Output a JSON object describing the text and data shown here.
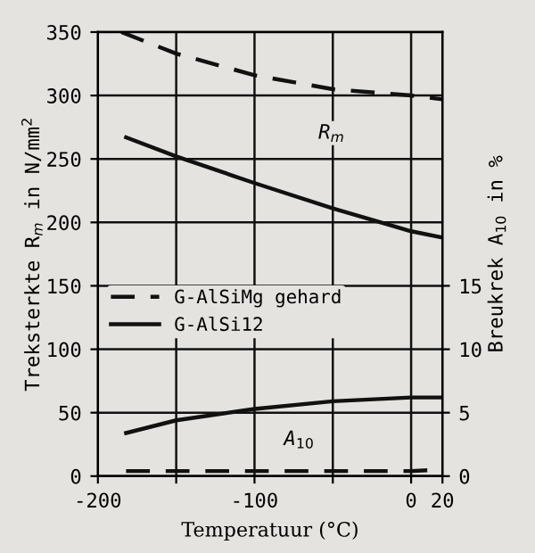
{
  "chart_data": {
    "type": "line",
    "xlabel": "Temperatuur (°C)",
    "ylabel": "Treksterkte R$_{m}$ in N/mm$^{2}$",
    "y2label": "Breukrek A$_{10}$ in %",
    "series": [
      {
        "name": "G-AlSiMg gehard",
        "color": "#111111",
        "line_style": "dashed",
        "x": [
          -185,
          -150,
          -100,
          -50,
          0,
          20
        ],
        "values": [
          350,
          333,
          316,
          305,
          300,
          297
        ]
      },
      {
        "name": "G-AlSi12",
        "color": "#111111",
        "line_style": "solid",
        "x": [
          -182,
          -150,
          -100,
          -50,
          0,
          20
        ],
        "values": [
          267,
          252,
          231,
          211,
          193,
          188
        ]
      },
      {
        "color": "#111111",
        "line_style": "dashed",
        "axis": "y2",
        "x": [
          -182,
          -150,
          -100,
          -50,
          0,
          18
        ],
        "values": [
          0.4,
          0.4,
          0.4,
          0.4,
          0.4,
          0.5
        ]
      },
      {
        "color": "#111111",
        "line_style": "solid",
        "axis": "y2",
        "x": [
          -182,
          -150,
          -100,
          -50,
          0,
          20
        ],
        "values": [
          3.4,
          4.4,
          5.3,
          5.9,
          6.2,
          6.2
        ]
      }
    ],
    "xlim": [
      -200,
      20
    ],
    "xticks": [
      -200,
      {
        "value": -150,
        "label": null
      },
      -100,
      {
        "value": -50,
        "label": null
      },
      0,
      20
    ],
    "ylim": [
      0,
      350
    ],
    "yticks": [
      0,
      50,
      100,
      150,
      200,
      250,
      300,
      350
    ],
    "y2lim": [
      0,
      35
    ],
    "y2ticks": [
      0,
      5,
      10,
      15
    ],
    "annotations": [
      "R$_{m}$",
      "A$_{10}$"
    ],
    "grid": true,
    "legend": "center left"
  }
}
